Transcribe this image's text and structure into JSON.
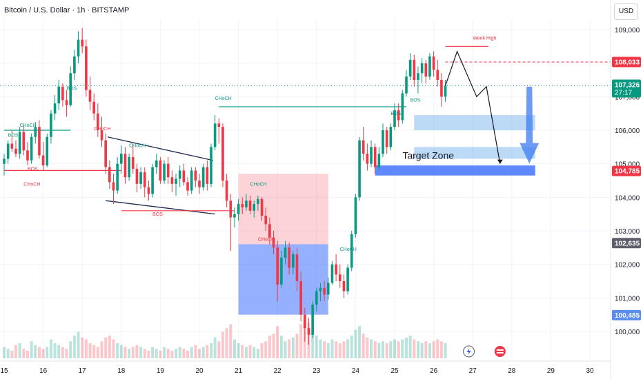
{
  "header": {
    "title": "Bitcoin / U.S. Dollar · 1h · BITSTAMP",
    "currency_button": "USD"
  },
  "chart_data": {
    "type": "candlestick",
    "title": "Bitcoin / U.S. Dollar · 1h · BITSTAMP",
    "xlabel": "",
    "ylabel": "",
    "ylim": [
      99500,
      109500
    ],
    "y_ticks": [
      100000,
      101000,
      102000,
      103000,
      104000,
      105000,
      106000,
      107000,
      108000,
      109000
    ],
    "y_tick_labels": [
      "100,000",
      "101,000",
      "102,000",
      "103,000",
      "104,000",
      "105,000",
      "106,000",
      "107,000",
      "108,000",
      "109,000"
    ],
    "x_ticks": [
      15,
      16,
      17,
      18,
      19,
      20,
      21,
      22,
      23,
      24,
      25,
      26,
      27,
      28,
      29,
      30
    ],
    "x_tick_labels": [
      "15",
      "16",
      "17",
      "18",
      "19",
      "20",
      "21",
      "22",
      "23",
      "24",
      "25",
      "26",
      "27",
      "28",
      "29",
      "30"
    ],
    "colors": {
      "up": "#089981",
      "down": "#f23645",
      "accent": "#2962ff"
    },
    "price_tags": [
      {
        "label": "108,033",
        "value": 108033,
        "color": "#f23645"
      },
      {
        "label": "107,326",
        "sublabel": "27:17",
        "value": 107326,
        "color": "#089981"
      },
      {
        "label": "104,785",
        "value": 104785,
        "color": "#f23645"
      },
      {
        "label": "102,635",
        "value": 102635,
        "color": "#5d606b"
      },
      {
        "label": "100,485",
        "value": 100485,
        "color": "#5b8def"
      }
    ],
    "annotations": [
      {
        "text": "BOS",
        "x": 15.1,
        "y": 105800,
        "color": "#089981"
      },
      {
        "text": "BOS",
        "x": 16.6,
        "y": 107200,
        "color": "#089981"
      },
      {
        "text": "CHoCH",
        "x": 15.4,
        "y": 106100,
        "color": "#089981"
      },
      {
        "text": "BOS",
        "x": 15.6,
        "y": 104800,
        "color": "#f23645"
      },
      {
        "text": "CHoCH",
        "x": 15.5,
        "y": 104350,
        "color": "#f23645"
      },
      {
        "text": "CHoCH",
        "x": 17.3,
        "y": 106000,
        "color": "#f23645"
      },
      {
        "text": "CHoCH",
        "x": 18.2,
        "y": 105500,
        "color": "#089981"
      },
      {
        "text": "BOS",
        "x": 18.8,
        "y": 103450,
        "color": "#f23645"
      },
      {
        "text": "CHoCH",
        "x": 20.4,
        "y": 106900,
        "color": "#089981"
      },
      {
        "text": "CHoCH",
        "x": 21.3,
        "y": 104350,
        "color": "#089981"
      },
      {
        "text": "CHoCH",
        "x": 21.5,
        "y": 102700,
        "color": "#f23645"
      },
      {
        "text": "CHoCH",
        "x": 23.6,
        "y": 102400,
        "color": "#089981"
      },
      {
        "text": "Target Zone",
        "x": 25.2,
        "y": 105150,
        "color": "#131722"
      },
      {
        "text": "Week High",
        "x": 27.0,
        "y": 108700,
        "color": "#f23645"
      },
      {
        "text": "BOS",
        "x": 24.9,
        "y": 106450,
        "color": "#089981"
      },
      {
        "text": "BOS",
        "x": 25.4,
        "y": 106850,
        "color": "#089981"
      }
    ],
    "trend_levels": [
      {
        "from_x": 15.0,
        "to_x": 16.7,
        "y": 106000,
        "color": "#089981"
      },
      {
        "from_x": 15.0,
        "to_x": 18.0,
        "y": 104800,
        "color": "#f23645"
      },
      {
        "from_x": 18.0,
        "to_x": 20.9,
        "y": 103600,
        "color": "#f23645"
      },
      {
        "from_x": 20.5,
        "to_x": 25.3,
        "y": 106700,
        "color": "#089981"
      },
      {
        "from_x": 26.3,
        "to_x": 27.4,
        "y": 108500,
        "color": "#f23645"
      }
    ],
    "zones": [
      {
        "from_x": 25.5,
        "to_x": 28.6,
        "y_from": 106000,
        "y_to": 106450,
        "color": "#90bff0"
      },
      {
        "from_x": 25.5,
        "to_x": 28.6,
        "y_from": 105150,
        "y_to": 105500,
        "color": "#90bff0"
      },
      {
        "from_x": 24.5,
        "to_x": 28.6,
        "y_from": 104650,
        "y_to": 104950,
        "color": "#2962ff"
      }
    ],
    "order_block": {
      "from_x": 21.0,
      "to_x": 23.3,
      "stop_from": 102600,
      "stop_to": 104700,
      "target_from": 100500,
      "target_to": 102600
    },
    "candles": [
      [
        15.0,
        105000,
        105300,
        104650,
        105150
      ],
      [
        15.1,
        105150,
        105700,
        105000,
        105600
      ],
      [
        15.2,
        105600,
        106000,
        105350,
        105450
      ],
      [
        15.3,
        105450,
        105700,
        105200,
        105300
      ],
      [
        15.4,
        105300,
        106100,
        105150,
        105950
      ],
      [
        15.5,
        105950,
        106150,
        105250,
        105400
      ],
      [
        15.6,
        105400,
        105650,
        104950,
        105100
      ],
      [
        15.7,
        105100,
        105900,
        105000,
        105800
      ],
      [
        15.8,
        105800,
        106250,
        105600,
        106100
      ],
      [
        15.9,
        106100,
        106300,
        105150,
        105250
      ],
      [
        16.0,
        105250,
        105650,
        104800,
        104950
      ],
      [
        16.1,
        104950,
        105900,
        104900,
        105800
      ],
      [
        16.2,
        105800,
        106600,
        105600,
        106500
      ],
      [
        16.3,
        106500,
        107050,
        106300,
        106800
      ],
      [
        16.4,
        106800,
        107500,
        106600,
        107300
      ],
      [
        16.5,
        107300,
        107400,
        106700,
        106900
      ],
      [
        16.6,
        106900,
        107200,
        106400,
        106750
      ],
      [
        16.7,
        106750,
        107900,
        106700,
        107700
      ],
      [
        16.8,
        107700,
        108400,
        107500,
        108200
      ],
      [
        16.9,
        108200,
        108950,
        108000,
        108700
      ],
      [
        17.0,
        108700,
        109050,
        108300,
        108500
      ],
      [
        17.1,
        108500,
        108700,
        107000,
        107200
      ],
      [
        17.2,
        107200,
        107600,
        106600,
        106850
      ],
      [
        17.3,
        106850,
        107100,
        106300,
        106500
      ],
      [
        17.4,
        106500,
        106800,
        105800,
        106000
      ],
      [
        17.5,
        106000,
        106400,
        105500,
        105700
      ],
      [
        17.6,
        105700,
        105900,
        104700,
        104900
      ],
      [
        17.7,
        104900,
        105100,
        104250,
        104450
      ],
      [
        17.8,
        104450,
        104700,
        103800,
        104200
      ],
      [
        17.9,
        104200,
        105200,
        104100,
        105000
      ],
      [
        18.0,
        105000,
        105550,
        104700,
        105300
      ],
      [
        18.1,
        105300,
        105500,
        104400,
        104600
      ],
      [
        18.2,
        104600,
        105300,
        104500,
        105200
      ],
      [
        18.3,
        105200,
        105600,
        104700,
        104850
      ],
      [
        18.4,
        104850,
        105000,
        104150,
        104400
      ],
      [
        18.5,
        104400,
        104900,
        104250,
        104750
      ],
      [
        18.6,
        104750,
        104900,
        104000,
        104300
      ],
      [
        18.7,
        104300,
        104500,
        103900,
        104100
      ],
      [
        18.8,
        104100,
        105000,
        104000,
        104900
      ],
      [
        18.9,
        104900,
        105300,
        104700,
        105100
      ],
      [
        19.0,
        105100,
        105200,
        104400,
        104500
      ],
      [
        19.1,
        104500,
        105100,
        104400,
        105000
      ],
      [
        19.2,
        105000,
        105200,
        104400,
        104600
      ],
      [
        19.3,
        104600,
        104800,
        104150,
        104400
      ],
      [
        19.4,
        104400,
        104700,
        104050,
        104550
      ],
      [
        19.5,
        104550,
        104950,
        104300,
        104800
      ],
      [
        19.6,
        104800,
        105000,
        104350,
        104450
      ],
      [
        19.7,
        104450,
        104600,
        104050,
        104200
      ],
      [
        19.8,
        104200,
        104900,
        104100,
        104800
      ],
      [
        19.9,
        104800,
        104900,
        104300,
        104500
      ],
      [
        20.0,
        104500,
        104700,
        104100,
        104300
      ],
      [
        20.1,
        104300,
        105000,
        104200,
        104900
      ],
      [
        20.2,
        104900,
        105100,
        104200,
        104400
      ],
      [
        20.3,
        104400,
        105600,
        104300,
        105500
      ],
      [
        20.4,
        105500,
        106450,
        105400,
        106200
      ],
      [
        20.5,
        106200,
        106350,
        105600,
        106100
      ],
      [
        20.6,
        106100,
        106200,
        104300,
        104500
      ],
      [
        20.7,
        104500,
        104700,
        103700,
        103900
      ],
      [
        20.8,
        103900,
        104100,
        102400,
        103400
      ],
      [
        20.9,
        103400,
        103700,
        103100,
        103500
      ],
      [
        21.0,
        103500,
        103950,
        103300,
        103800
      ],
      [
        21.1,
        103800,
        104000,
        103500,
        103700
      ],
      [
        21.2,
        103700,
        104100,
        103600,
        103900
      ],
      [
        21.3,
        103900,
        104050,
        103500,
        103600
      ],
      [
        21.4,
        103600,
        103900,
        103400,
        103800
      ],
      [
        21.5,
        103800,
        104050,
        103600,
        103950
      ],
      [
        21.6,
        103950,
        104000,
        103300,
        103450
      ],
      [
        21.7,
        103450,
        103700,
        103000,
        103200
      ],
      [
        21.8,
        103200,
        103400,
        102600,
        102800
      ],
      [
        21.9,
        102800,
        103000,
        102300,
        102500
      ],
      [
        22.0,
        102500,
        102700,
        100900,
        101400
      ],
      [
        22.1,
        101400,
        102400,
        101300,
        102200
      ],
      [
        22.2,
        102200,
        102700,
        102000,
        102500
      ],
      [
        22.3,
        102500,
        102650,
        101700,
        101900
      ],
      [
        22.4,
        101900,
        102400,
        101700,
        102300
      ],
      [
        22.5,
        102300,
        102500,
        101200,
        101500
      ],
      [
        22.6,
        101500,
        101800,
        100300,
        100500
      ],
      [
        22.7,
        100500,
        100700,
        99700,
        100100
      ],
      [
        22.8,
        100100,
        100400,
        99600,
        99900
      ],
      [
        22.9,
        99900,
        100900,
        99800,
        100800
      ],
      [
        23.0,
        100800,
        101300,
        100600,
        101200
      ],
      [
        23.1,
        101200,
        101450,
        100900,
        101300
      ],
      [
        23.2,
        101300,
        101500,
        100900,
        101100
      ],
      [
        23.3,
        101100,
        101600,
        100950,
        101450
      ],
      [
        23.4,
        101450,
        102100,
        101400,
        102000
      ],
      [
        23.5,
        102000,
        102300,
        101500,
        101700
      ],
      [
        23.6,
        101700,
        102000,
        101300,
        101500
      ],
      [
        23.7,
        101500,
        101700,
        101000,
        101200
      ],
      [
        23.8,
        101200,
        102000,
        101100,
        101900
      ],
      [
        23.9,
        101900,
        103000,
        101800,
        102900
      ],
      [
        24.0,
        102900,
        104100,
        102800,
        104000
      ],
      [
        24.1,
        104000,
        105800,
        103900,
        105700
      ],
      [
        24.2,
        105700,
        106100,
        105100,
        105300
      ],
      [
        24.3,
        105300,
        105600,
        104800,
        105000
      ],
      [
        24.4,
        105000,
        105700,
        104900,
        105500
      ],
      [
        24.5,
        105500,
        105600,
        104700,
        104900
      ],
      [
        24.6,
        104900,
        105500,
        104800,
        105300
      ],
      [
        24.7,
        105300,
        106200,
        105200,
        106000
      ],
      [
        24.8,
        106000,
        106100,
        105300,
        105500
      ],
      [
        24.9,
        105500,
        106200,
        105400,
        106100
      ],
      [
        25.0,
        106100,
        106800,
        106000,
        106600
      ],
      [
        25.1,
        106600,
        106800,
        106100,
        106300
      ],
      [
        25.2,
        106300,
        107200,
        106200,
        107100
      ],
      [
        25.3,
        107100,
        107800,
        107000,
        107600
      ],
      [
        25.4,
        107600,
        108300,
        107500,
        108100
      ],
      [
        25.5,
        108100,
        108250,
        107300,
        107500
      ],
      [
        25.6,
        107500,
        107900,
        107100,
        107700
      ],
      [
        25.7,
        107700,
        108150,
        107400,
        108000
      ],
      [
        25.8,
        108000,
        108100,
        107400,
        107600
      ],
      [
        25.9,
        107600,
        108300,
        107500,
        108200
      ],
      [
        26.0,
        108200,
        108350,
        107600,
        107800
      ],
      [
        26.1,
        107800,
        108100,
        107300,
        107500
      ],
      [
        26.2,
        107500,
        107700,
        106700,
        107000
      ],
      [
        26.3,
        107000,
        107500,
        106850,
        107326
      ]
    ],
    "volume_max": 1,
    "volume": [
      0.3,
      0.25,
      0.2,
      0.35,
      0.4,
      0.25,
      0.2,
      0.45,
      0.35,
      0.3,
      0.25,
      0.3,
      0.5,
      0.4,
      0.35,
      0.3,
      0.25,
      0.45,
      0.6,
      0.7,
      0.55,
      0.5,
      0.4,
      0.35,
      0.3,
      0.45,
      0.55,
      0.6,
      0.5,
      0.4,
      0.35,
      0.3,
      0.25,
      0.3,
      0.35,
      0.3,
      0.25,
      0.2,
      0.3,
      0.25,
      0.2,
      0.3,
      0.25,
      0.2,
      0.25,
      0.3,
      0.25,
      0.2,
      0.3,
      0.35,
      0.25,
      0.3,
      0.35,
      0.4,
      0.55,
      0.45,
      0.7,
      0.8,
      0.9,
      0.5,
      0.4,
      0.35,
      0.3,
      0.35,
      0.3,
      0.25,
      0.4,
      0.45,
      0.6,
      0.65,
      0.85,
      0.6,
      0.45,
      0.5,
      0.55,
      0.65,
      0.9,
      1.0,
      0.95,
      0.7,
      0.6,
      0.5,
      0.45,
      0.4,
      0.5,
      0.45,
      0.4,
      0.45,
      0.5,
      0.6,
      0.75,
      0.85,
      0.65,
      0.55,
      0.5,
      0.45,
      0.4,
      0.45,
      0.4,
      0.45,
      0.5,
      0.45,
      0.5,
      0.55,
      0.6,
      0.5,
      0.45,
      0.4,
      0.45,
      0.4,
      0.45,
      0.5,
      0.45,
      0.4
    ],
    "projection_path": [
      [
        26.3,
        107326
      ],
      [
        26.6,
        108350
      ],
      [
        27.1,
        107000
      ],
      [
        27.35,
        107300
      ],
      [
        27.7,
        105000
      ]
    ],
    "target_arrow": {
      "x": 28.45,
      "from": 107300,
      "to": 105000,
      "color": "#3d7bf0"
    },
    "event_icons": [
      {
        "x": 26.9,
        "label": ""
      },
      {
        "x": 27.7,
        "label": ""
      }
    ]
  }
}
